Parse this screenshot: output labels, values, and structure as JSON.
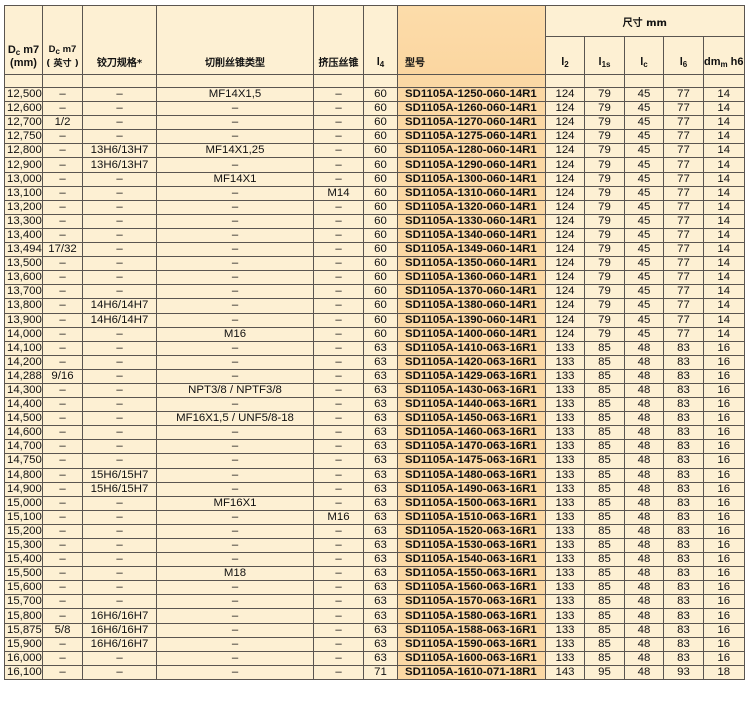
{
  "header": {
    "dc_mm": {
      "a": "D",
      "sub": "c",
      "b": " m7",
      "line2": "(mm)"
    },
    "dc_inch": {
      "a": "D",
      "sub": "c",
      "b": " m7",
      "line2": "( 英寸 )"
    },
    "reamer": "铰刀规格*",
    "cut_tap": "切削丝锥类型",
    "form_tap": "挤压丝锥",
    "l4": {
      "a": "l",
      "sub": "4"
    },
    "model": "型号",
    "dims_group": "尺寸 mm",
    "l2": {
      "a": "l",
      "sub": "2"
    },
    "l1s": {
      "a": "l",
      "sub": "1s"
    },
    "lc": {
      "a": "l",
      "sub": "c"
    },
    "l6": {
      "a": "l",
      "sub": "6"
    },
    "dmm": {
      "a": "dm",
      "sub": "m",
      "b": " h6"
    }
  },
  "columns": [
    "dc_mm",
    "dc_inch",
    "reamer",
    "cut_tap",
    "form_tap",
    "l4",
    "model",
    "l2",
    "l1s",
    "lc",
    "l6",
    "dmm"
  ],
  "rows": [
    [
      "12,500",
      "–",
      "–",
      "MF14X1,5",
      "–",
      "60",
      "SD1105A-1250-060-14R1",
      "124",
      "79",
      "45",
      "77",
      "14"
    ],
    [
      "12,600",
      "–",
      "–",
      "–",
      "–",
      "60",
      "SD1105A-1260-060-14R1",
      "124",
      "79",
      "45",
      "77",
      "14"
    ],
    [
      "12,700",
      "1/2",
      "–",
      "–",
      "–",
      "60",
      "SD1105A-1270-060-14R1",
      "124",
      "79",
      "45",
      "77",
      "14"
    ],
    [
      "12,750",
      "–",
      "–",
      "–",
      "–",
      "60",
      "SD1105A-1275-060-14R1",
      "124",
      "79",
      "45",
      "77",
      "14"
    ],
    [
      "12,800",
      "–",
      "13H6/13H7",
      "MF14X1,25",
      "–",
      "60",
      "SD1105A-1280-060-14R1",
      "124",
      "79",
      "45",
      "77",
      "14"
    ],
    [
      "12,900",
      "–",
      "13H6/13H7",
      "–",
      "–",
      "60",
      "SD1105A-1290-060-14R1",
      "124",
      "79",
      "45",
      "77",
      "14"
    ],
    [
      "13,000",
      "–",
      "–",
      "MF14X1",
      "–",
      "60",
      "SD1105A-1300-060-14R1",
      "124",
      "79",
      "45",
      "77",
      "14"
    ],
    [
      "13,100",
      "–",
      "–",
      "–",
      "M14",
      "60",
      "SD1105A-1310-060-14R1",
      "124",
      "79",
      "45",
      "77",
      "14"
    ],
    [
      "13,200",
      "–",
      "–",
      "–",
      "–",
      "60",
      "SD1105A-1320-060-14R1",
      "124",
      "79",
      "45",
      "77",
      "14"
    ],
    [
      "13,300",
      "–",
      "–",
      "–",
      "–",
      "60",
      "SD1105A-1330-060-14R1",
      "124",
      "79",
      "45",
      "77",
      "14"
    ],
    [
      "13,400",
      "–",
      "–",
      "–",
      "–",
      "60",
      "SD1105A-1340-060-14R1",
      "124",
      "79",
      "45",
      "77",
      "14"
    ],
    [
      "13,494",
      "17/32",
      "–",
      "–",
      "–",
      "60",
      "SD1105A-1349-060-14R1",
      "124",
      "79",
      "45",
      "77",
      "14"
    ],
    [
      "13,500",
      "–",
      "–",
      "–",
      "–",
      "60",
      "SD1105A-1350-060-14R1",
      "124",
      "79",
      "45",
      "77",
      "14"
    ],
    [
      "13,600",
      "–",
      "–",
      "–",
      "–",
      "60",
      "SD1105A-1360-060-14R1",
      "124",
      "79",
      "45",
      "77",
      "14"
    ],
    [
      "13,700",
      "–",
      "–",
      "–",
      "–",
      "60",
      "SD1105A-1370-060-14R1",
      "124",
      "79",
      "45",
      "77",
      "14"
    ],
    [
      "13,800",
      "–",
      "14H6/14H7",
      "–",
      "–",
      "60",
      "SD1105A-1380-060-14R1",
      "124",
      "79",
      "45",
      "77",
      "14"
    ],
    [
      "13,900",
      "–",
      "14H6/14H7",
      "–",
      "–",
      "60",
      "SD1105A-1390-060-14R1",
      "124",
      "79",
      "45",
      "77",
      "14"
    ],
    [
      "14,000",
      "–",
      "–",
      "M16",
      "–",
      "60",
      "SD1105A-1400-060-14R1",
      "124",
      "79",
      "45",
      "77",
      "14"
    ],
    [
      "14,100",
      "–",
      "–",
      "–",
      "–",
      "63",
      "SD1105A-1410-063-16R1",
      "133",
      "85",
      "48",
      "83",
      "16"
    ],
    [
      "14,200",
      "–",
      "–",
      "–",
      "–",
      "63",
      "SD1105A-1420-063-16R1",
      "133",
      "85",
      "48",
      "83",
      "16"
    ],
    [
      "14,288",
      "9/16",
      "–",
      "–",
      "–",
      "63",
      "SD1105A-1429-063-16R1",
      "133",
      "85",
      "48",
      "83",
      "16"
    ],
    [
      "14,300",
      "–",
      "–",
      "NPT3/8 / NPTF3/8",
      "–",
      "63",
      "SD1105A-1430-063-16R1",
      "133",
      "85",
      "48",
      "83",
      "16"
    ],
    [
      "14,400",
      "–",
      "–",
      "–",
      "–",
      "63",
      "SD1105A-1440-063-16R1",
      "133",
      "85",
      "48",
      "83",
      "16"
    ],
    [
      "14,500",
      "–",
      "–",
      "MF16X1,5 / UNF5/8-18",
      "–",
      "63",
      "SD1105A-1450-063-16R1",
      "133",
      "85",
      "48",
      "83",
      "16"
    ],
    [
      "14,600",
      "–",
      "–",
      "–",
      "–",
      "63",
      "SD1105A-1460-063-16R1",
      "133",
      "85",
      "48",
      "83",
      "16"
    ],
    [
      "14,700",
      "–",
      "–",
      "–",
      "–",
      "63",
      "SD1105A-1470-063-16R1",
      "133",
      "85",
      "48",
      "83",
      "16"
    ],
    [
      "14,750",
      "–",
      "–",
      "–",
      "–",
      "63",
      "SD1105A-1475-063-16R1",
      "133",
      "85",
      "48",
      "83",
      "16"
    ],
    [
      "14,800",
      "–",
      "15H6/15H7",
      "–",
      "–",
      "63",
      "SD1105A-1480-063-16R1",
      "133",
      "85",
      "48",
      "83",
      "16"
    ],
    [
      "14,900",
      "–",
      "15H6/15H7",
      "–",
      "–",
      "63",
      "SD1105A-1490-063-16R1",
      "133",
      "85",
      "48",
      "83",
      "16"
    ],
    [
      "15,000",
      "–",
      "–",
      "MF16X1",
      "–",
      "63",
      "SD1105A-1500-063-16R1",
      "133",
      "85",
      "48",
      "83",
      "16"
    ],
    [
      "15,100",
      "–",
      "–",
      "–",
      "M16",
      "63",
      "SD1105A-1510-063-16R1",
      "133",
      "85",
      "48",
      "83",
      "16"
    ],
    [
      "15,200",
      "–",
      "–",
      "–",
      "–",
      "63",
      "SD1105A-1520-063-16R1",
      "133",
      "85",
      "48",
      "83",
      "16"
    ],
    [
      "15,300",
      "–",
      "–",
      "–",
      "–",
      "63",
      "SD1105A-1530-063-16R1",
      "133",
      "85",
      "48",
      "83",
      "16"
    ],
    [
      "15,400",
      "–",
      "–",
      "–",
      "–",
      "63",
      "SD1105A-1540-063-16R1",
      "133",
      "85",
      "48",
      "83",
      "16"
    ],
    [
      "15,500",
      "–",
      "–",
      "M18",
      "–",
      "63",
      "SD1105A-1550-063-16R1",
      "133",
      "85",
      "48",
      "83",
      "16"
    ],
    [
      "15,600",
      "–",
      "–",
      "–",
      "–",
      "63",
      "SD1105A-1560-063-16R1",
      "133",
      "85",
      "48",
      "83",
      "16"
    ],
    [
      "15,700",
      "–",
      "–",
      "–",
      "–",
      "63",
      "SD1105A-1570-063-16R1",
      "133",
      "85",
      "48",
      "83",
      "16"
    ],
    [
      "15,800",
      "–",
      "16H6/16H7",
      "–",
      "–",
      "63",
      "SD1105A-1580-063-16R1",
      "133",
      "85",
      "48",
      "83",
      "16"
    ],
    [
      "15,875",
      "5/8",
      "16H6/16H7",
      "–",
      "–",
      "63",
      "SD1105A-1588-063-16R1",
      "133",
      "85",
      "48",
      "83",
      "16"
    ],
    [
      "15,900",
      "–",
      "16H6/16H7",
      "–",
      "–",
      "63",
      "SD1105A-1590-063-16R1",
      "133",
      "85",
      "48",
      "83",
      "16"
    ],
    [
      "16,000",
      "–",
      "–",
      "–",
      "–",
      "63",
      "SD1105A-1600-063-16R1",
      "133",
      "85",
      "48",
      "83",
      "16"
    ],
    [
      "16,100",
      "–",
      "–",
      "–",
      "–",
      "71",
      "SD1105A-1610-071-18R1",
      "143",
      "95",
      "48",
      "93",
      "18"
    ]
  ]
}
